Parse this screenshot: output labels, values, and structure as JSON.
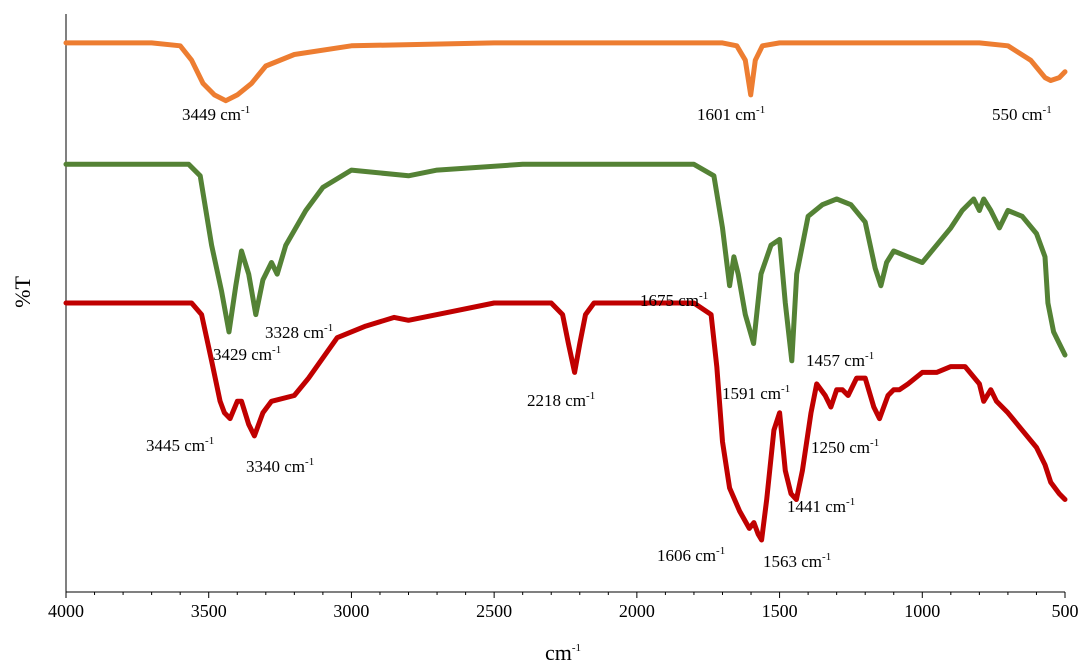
{
  "chart_data": {
    "type": "line",
    "xlabel": "cm",
    "xlabel_sup": "-1",
    "ylabel": "%T",
    "xlim": [
      4000,
      500
    ],
    "x_reversed": true,
    "x_ticks": [
      4000,
      3500,
      3000,
      2500,
      2000,
      1500,
      1000,
      500
    ],
    "ylim": [
      0,
      100
    ],
    "grid": false,
    "legend": "none",
    "series": [
      {
        "color": "#ED7D31",
        "points": [
          [
            4000,
            95
          ],
          [
            3700,
            95
          ],
          [
            3600,
            94.5
          ],
          [
            3560,
            92
          ],
          [
            3520,
            88
          ],
          [
            3480,
            86
          ],
          [
            3440,
            85
          ],
          [
            3400,
            86
          ],
          [
            3350,
            88
          ],
          [
            3300,
            91
          ],
          [
            3200,
            93
          ],
          [
            3000,
            94.5
          ],
          [
            2500,
            95
          ],
          [
            2000,
            95
          ],
          [
            1700,
            95
          ],
          [
            1650,
            94.5
          ],
          [
            1620,
            92
          ],
          [
            1601,
            86
          ],
          [
            1585,
            92
          ],
          [
            1560,
            94.5
          ],
          [
            1500,
            95
          ],
          [
            1000,
            95
          ],
          [
            800,
            95
          ],
          [
            700,
            94.5
          ],
          [
            620,
            92
          ],
          [
            570,
            89
          ],
          [
            550,
            88.5
          ],
          [
            520,
            89
          ],
          [
            500,
            90
          ]
        ]
      },
      {
        "color": "#548235",
        "points": [
          [
            4000,
            74
          ],
          [
            3570,
            74
          ],
          [
            3530,
            72
          ],
          [
            3490,
            60
          ],
          [
            3455,
            52
          ],
          [
            3429,
            45
          ],
          [
            3405,
            53
          ],
          [
            3385,
            59
          ],
          [
            3360,
            55
          ],
          [
            3335,
            48
          ],
          [
            3310,
            54
          ],
          [
            3280,
            57
          ],
          [
            3260,
            55
          ],
          [
            3230,
            60
          ],
          [
            3160,
            66
          ],
          [
            3100,
            70
          ],
          [
            3000,
            73
          ],
          [
            2800,
            72
          ],
          [
            2700,
            73
          ],
          [
            2400,
            74
          ],
          [
            2000,
            74
          ],
          [
            1800,
            74
          ],
          [
            1730,
            72
          ],
          [
            1700,
            63
          ],
          [
            1675,
            53
          ],
          [
            1660,
            58
          ],
          [
            1645,
            55
          ],
          [
            1620,
            48
          ],
          [
            1591,
            43
          ],
          [
            1565,
            55
          ],
          [
            1530,
            60
          ],
          [
            1500,
            61
          ],
          [
            1480,
            50
          ],
          [
            1457,
            40
          ],
          [
            1440,
            55
          ],
          [
            1400,
            65
          ],
          [
            1350,
            67
          ],
          [
            1300,
            68
          ],
          [
            1250,
            67
          ],
          [
            1200,
            64
          ],
          [
            1165,
            56
          ],
          [
            1145,
            53
          ],
          [
            1125,
            57
          ],
          [
            1100,
            59
          ],
          [
            1050,
            58
          ],
          [
            1000,
            57
          ],
          [
            950,
            60
          ],
          [
            900,
            63
          ],
          [
            860,
            66
          ],
          [
            820,
            68
          ],
          [
            800,
            66
          ],
          [
            785,
            68
          ],
          [
            760,
            66
          ],
          [
            730,
            63
          ],
          [
            700,
            66
          ],
          [
            650,
            65
          ],
          [
            600,
            62
          ],
          [
            570,
            58
          ],
          [
            560,
            50
          ],
          [
            540,
            45
          ],
          [
            520,
            43
          ],
          [
            500,
            41
          ]
        ]
      },
      {
        "color": "#C00000",
        "points": [
          [
            4000,
            50
          ],
          [
            3560,
            50
          ],
          [
            3525,
            48
          ],
          [
            3490,
            40
          ],
          [
            3460,
            33
          ],
          [
            3445,
            31
          ],
          [
            3425,
            30
          ],
          [
            3400,
            33
          ],
          [
            3385,
            33
          ],
          [
            3360,
            29
          ],
          [
            3340,
            27
          ],
          [
            3310,
            31
          ],
          [
            3280,
            33
          ],
          [
            3200,
            34
          ],
          [
            3150,
            37
          ],
          [
            3050,
            44
          ],
          [
            2950,
            46
          ],
          [
            2850,
            47.5
          ],
          [
            2800,
            47
          ],
          [
            2750,
            47.5
          ],
          [
            2650,
            48.5
          ],
          [
            2500,
            50
          ],
          [
            2300,
            50
          ],
          [
            2260,
            48
          ],
          [
            2240,
            43
          ],
          [
            2218,
            38
          ],
          [
            2200,
            43
          ],
          [
            2180,
            48
          ],
          [
            2150,
            50
          ],
          [
            1800,
            50
          ],
          [
            1740,
            48
          ],
          [
            1720,
            39
          ],
          [
            1700,
            26
          ],
          [
            1675,
            18
          ],
          [
            1640,
            14
          ],
          [
            1606,
            11
          ],
          [
            1590,
            12
          ],
          [
            1575,
            10
          ],
          [
            1563,
            9
          ],
          [
            1545,
            16
          ],
          [
            1520,
            28
          ],
          [
            1500,
            31
          ],
          [
            1480,
            21
          ],
          [
            1460,
            17
          ],
          [
            1441,
            16
          ],
          [
            1420,
            21
          ],
          [
            1390,
            31
          ],
          [
            1370,
            36
          ],
          [
            1340,
            34
          ],
          [
            1320,
            32
          ],
          [
            1300,
            35
          ],
          [
            1280,
            35
          ],
          [
            1260,
            34
          ],
          [
            1230,
            37
          ],
          [
            1200,
            37
          ],
          [
            1170,
            32
          ],
          [
            1150,
            30
          ],
          [
            1120,
            34
          ],
          [
            1100,
            35
          ],
          [
            1080,
            35
          ],
          [
            1050,
            36
          ],
          [
            1000,
            38
          ],
          [
            950,
            38
          ],
          [
            900,
            39
          ],
          [
            850,
            39
          ],
          [
            800,
            36
          ],
          [
            785,
            33
          ],
          [
            760,
            35
          ],
          [
            740,
            33
          ],
          [
            700,
            31
          ],
          [
            650,
            28
          ],
          [
            600,
            25
          ],
          [
            570,
            22
          ],
          [
            550,
            19
          ],
          [
            520,
            17
          ],
          [
            500,
            16
          ]
        ]
      }
    ],
    "annotations": [
      {
        "text": "3449 cm",
        "sup": "-1"
      },
      {
        "text": "1601 cm",
        "sup": "-1"
      },
      {
        "text": "550 cm",
        "sup": "-1"
      },
      {
        "text": "1675 cm",
        "sup": "-1"
      },
      {
        "text": "3328 cm",
        "sup": "-1"
      },
      {
        "text": "3429 cm",
        "sup": "-1"
      },
      {
        "text": "1591 cm",
        "sup": "-1"
      },
      {
        "text": "1457 cm",
        "sup": "-1"
      },
      {
        "text": "2218 cm",
        "sup": "-1"
      },
      {
        "text": "3445 cm",
        "sup": "-1"
      },
      {
        "text": "3340 cm",
        "sup": "-1"
      },
      {
        "text": "1250 cm",
        "sup": "-1"
      },
      {
        "text": "1441 cm",
        "sup": "-1"
      },
      {
        "text": "1606 cm",
        "sup": "-1"
      },
      {
        "text": "1563 cm",
        "sup": "-1"
      }
    ]
  }
}
